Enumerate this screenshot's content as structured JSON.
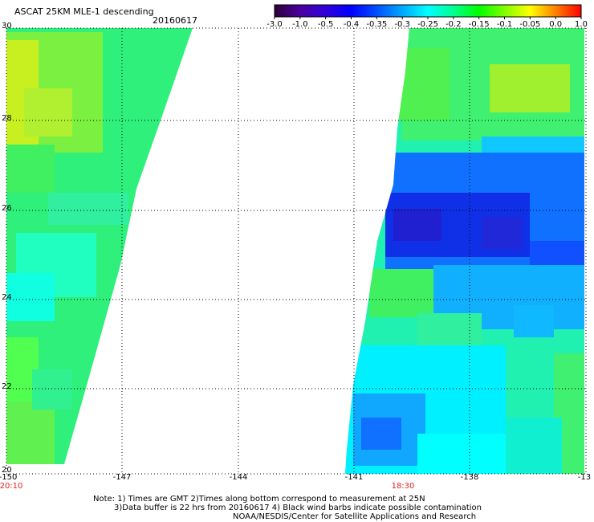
{
  "header": {
    "title": "ASCAT 25KM MLE-1 descending",
    "date": "20160617"
  },
  "colorbar": {
    "labels": [
      "-3.0",
      "-1.0",
      "-0.5",
      "-0.4",
      "-0.35",
      "-0.3",
      "-0.25",
      "-0.2",
      "-0.15",
      "-0.1",
      "-0.05",
      "0.0",
      "1.0"
    ],
    "colors": [
      "#2a0035",
      "#4b00a0",
      "#3000d8",
      "#0000ff",
      "#0050ff",
      "#00a8ff",
      "#00ffff",
      "#00ff90",
      "#00ff00",
      "#80ff00",
      "#ffff00",
      "#ff8000",
      "#ff0000"
    ]
  },
  "axes": {
    "y_ticks": [
      "30",
      "28",
      "26",
      "24",
      "22",
      "20"
    ],
    "x_ticks": [
      "-150",
      "-147",
      "-144",
      "-141",
      "-138",
      "-13"
    ],
    "lon_range": [
      -150,
      -135
    ],
    "lat_range": [
      20,
      30
    ]
  },
  "pass_times": [
    {
      "label": "20:10",
      "lon": -150
    },
    {
      "label": "18:30",
      "lon": -139.8
    }
  ],
  "notes": {
    "line1": "Note: 1) Times are GMT 2)Times along bottom correspond to measurement at 25N",
    "line2": "3)Data buffer is 22 hrs from 20160617 4) Black wind barbs indicate possible contamination",
    "line3": "NOAA/NESDIS/Center for Satellite Applications and Research"
  }
}
